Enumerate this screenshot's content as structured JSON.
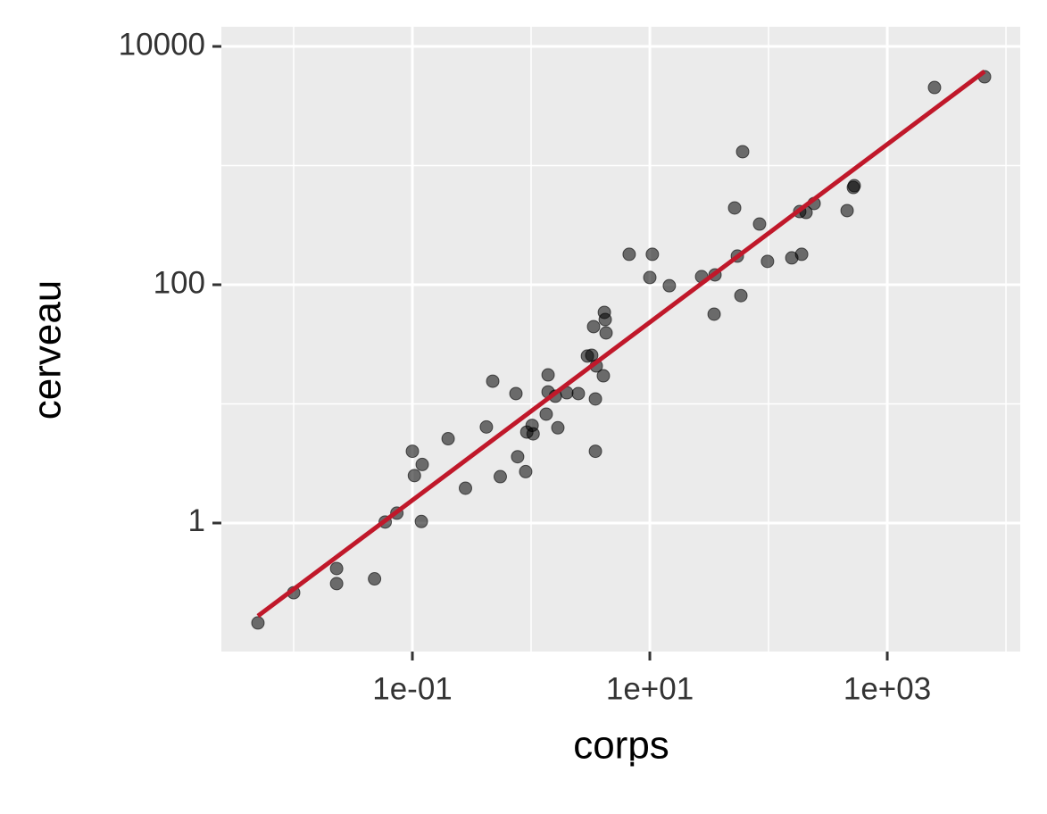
{
  "chart_data": {
    "type": "scatter",
    "xlabel": "corps",
    "ylabel": "cerveau",
    "xlog": true,
    "ylog": true,
    "grid": true,
    "xlim": [
      0.00246,
      13180
    ],
    "ylim": [
      0.0834,
      14620
    ],
    "xticks": [
      {
        "value": 0.1,
        "label": "1e-01"
      },
      {
        "value": 10,
        "label": "1e+01"
      },
      {
        "value": 1000,
        "label": "1e+03"
      }
    ],
    "yticks": [
      1,
      100,
      10000
    ],
    "xminor": [
      0.01,
      1,
      100,
      10000
    ],
    "yminor": [
      0.01,
      10,
      1000
    ],
    "series": [
      {
        "color": "#000000",
        "x": [
          0.005,
          0.01,
          0.023,
          0.023,
          0.048,
          0.059,
          0.074,
          0.1,
          0.104,
          0.119,
          0.121,
          0.2,
          0.28,
          0.42,
          0.475,
          0.55,
          0.745,
          0.77,
          0.9,
          0.92,
          1.02,
          1.04,
          1.34,
          1.39,
          1.39,
          1.6,
          1.68,
          2.0,
          2.5,
          2.98,
          3.24,
          3.36,
          3.48,
          3.48,
          3.54,
          4.06,
          4.14,
          4.21,
          4.28,
          6.7,
          10,
          10.5,
          14.6,
          27.3,
          34.8,
          35.4,
          51.8,
          54.6,
          58.5,
          60.5,
          84,
          98,
          157,
          183,
          190,
          207,
          242,
          459,
          518,
          527,
          2500,
          6600
        ],
        "values": [
          0.145,
          0.26,
          0.415,
          0.31,
          0.34,
          1.02,
          1.21,
          4.0,
          2.5,
          1.03,
          3.1,
          5.1,
          1.96,
          6.4,
          15.5,
          2.45,
          12.2,
          3.6,
          2.7,
          5.8,
          6.6,
          5.6,
          8.2,
          17.5,
          12.6,
          11.6,
          6.3,
          12.4,
          12.2,
          25.2,
          25.6,
          44.5,
          11.0,
          4.0,
          20.8,
          17.2,
          58.6,
          51.0,
          39.4,
          180,
          115,
          180,
          98,
          117,
          56.6,
          121,
          441,
          174,
          81,
          1307,
          323,
          157,
          168,
          411,
          180,
          404,
          481,
          419,
          655,
          678,
          4520,
          5560
        ]
      }
    ],
    "fit": {
      "color": "#c0182a",
      "x": [
        0.005,
        6600
      ],
      "values": [
        0.166,
        6170
      ]
    }
  }
}
